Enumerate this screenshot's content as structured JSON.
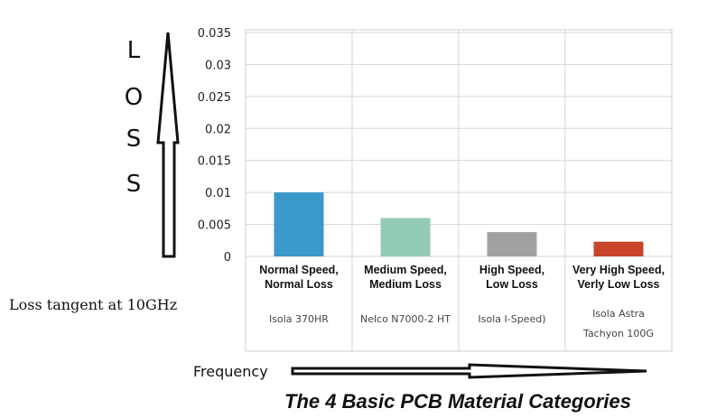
{
  "chart_data": {
    "type": "bar",
    "title": "The 4 Basic PCB Material Categories",
    "ylabel": "LOSS",
    "ylabel_letters": [
      "L",
      "O",
      "S",
      "S"
    ],
    "xlabel": "Frequency",
    "side_note": "Loss tangent at 10GHz",
    "ylim": [
      0,
      0.035
    ],
    "yticks": [
      "0.035",
      "0.03",
      "0.025",
      "0.02",
      "0.015",
      "0.01",
      "0.005",
      "0"
    ],
    "grid": true,
    "categories": [
      {
        "line1": "Normal Speed,",
        "line2": "Normal Loss",
        "products": [
          "Isola 370HR"
        ]
      },
      {
        "line1": "Medium Speed,",
        "line2": "Medium Loss",
        "products": [
          "Nelco N7000-2 HT"
        ]
      },
      {
        "line1": "High Speed,",
        "line2": "Low Loss",
        "products": [
          "Isola I-Speed)"
        ]
      },
      {
        "line1": "Very High Speed,",
        "line2": "Verly Low Loss",
        "products": [
          "Isola Astra",
          "Tachyon 100G"
        ]
      }
    ],
    "values": [
      0.01,
      0.006,
      0.0038,
      0.0023
    ],
    "colors": [
      "#3a99c9",
      "#94cbb5",
      "#a0a0a0",
      "#c8452a"
    ]
  }
}
